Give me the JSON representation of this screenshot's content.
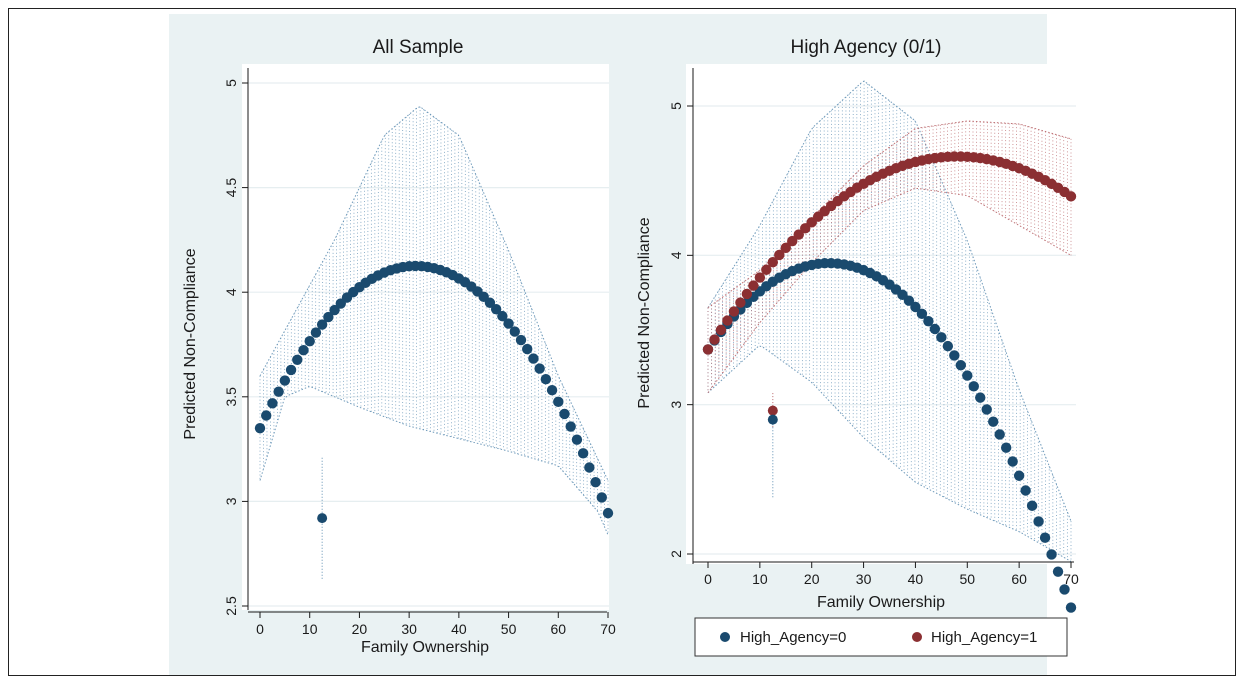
{
  "colors": {
    "plot_region_bg": "#eaf2f3",
    "plot_area_bg": "#ffffff",
    "grid": "#e6eef0",
    "series_0": "#1a4a6e",
    "series_1": "#8b2f32",
    "ci_0": "#5f8fb3",
    "ci_1": "#b9666a"
  },
  "chart_data": [
    {
      "type": "line",
      "title": "All Sample",
      "xlabel": "Family Ownership",
      "ylabel": "Predicted Non-Compliance",
      "xlim": [
        0,
        70
      ],
      "ylim": [
        2.5,
        5
      ],
      "xticks": [
        0,
        10,
        20,
        30,
        40,
        50,
        60,
        70
      ],
      "yticks": [
        2.5,
        3,
        3.5,
        4,
        4.5,
        5
      ],
      "ytick_labels": [
        "2.5",
        "3",
        "3.5",
        "4",
        "4.5",
        "5"
      ],
      "grid": true,
      "legend": "none",
      "quadratic": {
        "x0": 0,
        "x1": 70,
        "n": 57
      },
      "series": [
        {
          "curve": {
            "a": 3.35,
            "b": 0.0495,
            "c": -0.00079
          },
          "ci": {
            "top": [
              [
                0,
                3.6
              ],
              [
                15,
                4.25
              ],
              [
                25,
                4.75
              ],
              [
                32,
                4.89
              ],
              [
                40,
                4.75
              ],
              [
                50,
                4.2
              ],
              [
                60,
                3.6
              ],
              [
                68,
                3.2
              ],
              [
                70,
                3.1
              ]
            ],
            "bottom": [
              [
                0,
                3.1
              ],
              [
                5,
                3.5
              ],
              [
                10,
                3.55
              ],
              [
                20,
                3.45
              ],
              [
                30,
                3.36
              ],
              [
                40,
                3.3
              ],
              [
                50,
                3.24
              ],
              [
                60,
                3.17
              ],
              [
                68,
                2.95
              ],
              [
                70,
                2.84
              ]
            ]
          },
          "point": {
            "x": 12.5,
            "y": 2.92,
            "lo": 2.63,
            "hi": 3.21
          }
        }
      ]
    },
    {
      "type": "line",
      "title": "High Agency (0/1)",
      "xlabel": "Family Ownership",
      "ylabel": "Predicted Non-Compliance",
      "xlim": [
        0,
        70
      ],
      "ylim": [
        2,
        5
      ],
      "xticks": [
        0,
        10,
        20,
        30,
        40,
        50,
        60,
        70
      ],
      "yticks": [
        2,
        3,
        4,
        5
      ],
      "ytick_labels": [
        "2",
        "3",
        "4",
        "5"
      ],
      "grid": true,
      "legend": "bottom",
      "quadratic": {
        "x0": 0,
        "x1": 70,
        "n": 57
      },
      "series": [
        {
          "name": "High_Agency=0",
          "curve": {
            "a": 3.37,
            "b": 0.0495,
            "c": -0.00106
          },
          "ci": {
            "top": [
              [
                0,
                3.65
              ],
              [
                10,
                4.2
              ],
              [
                20,
                4.85
              ],
              [
                30,
                5.17
              ],
              [
                40,
                4.9
              ],
              [
                50,
                4.1
              ],
              [
                60,
                3.1
              ],
              [
                70,
                2.22
              ]
            ],
            "bottom": [
              [
                0,
                3.08
              ],
              [
                10,
                3.4
              ],
              [
                20,
                3.15
              ],
              [
                30,
                2.78
              ],
              [
                40,
                2.48
              ],
              [
                50,
                2.3
              ],
              [
                60,
                2.15
              ],
              [
                70,
                1.95
              ]
            ]
          },
          "point": {
            "x": 12.5,
            "y": 2.9,
            "lo": 2.38,
            "hi": 3.0
          }
        },
        {
          "name": "High_Agency=1",
          "curve": {
            "a": 3.37,
            "b": 0.0537,
            "c": -0.000558
          },
          "ci": {
            "top": [
              [
                0,
                3.65
              ],
              [
                10,
                3.9
              ],
              [
                20,
                4.25
              ],
              [
                30,
                4.6
              ],
              [
                40,
                4.85
              ],
              [
                50,
                4.9
              ],
              [
                60,
                4.88
              ],
              [
                70,
                4.78
              ]
            ],
            "bottom": [
              [
                0,
                3.08
              ],
              [
                10,
                3.55
              ],
              [
                20,
                3.95
              ],
              [
                30,
                4.3
              ],
              [
                40,
                4.45
              ],
              [
                50,
                4.4
              ],
              [
                60,
                4.2
              ],
              [
                70,
                4.0
              ]
            ]
          },
          "point": {
            "x": 12.5,
            "y": 2.96,
            "lo": 2.85,
            "hi": 3.08
          }
        }
      ]
    }
  ]
}
